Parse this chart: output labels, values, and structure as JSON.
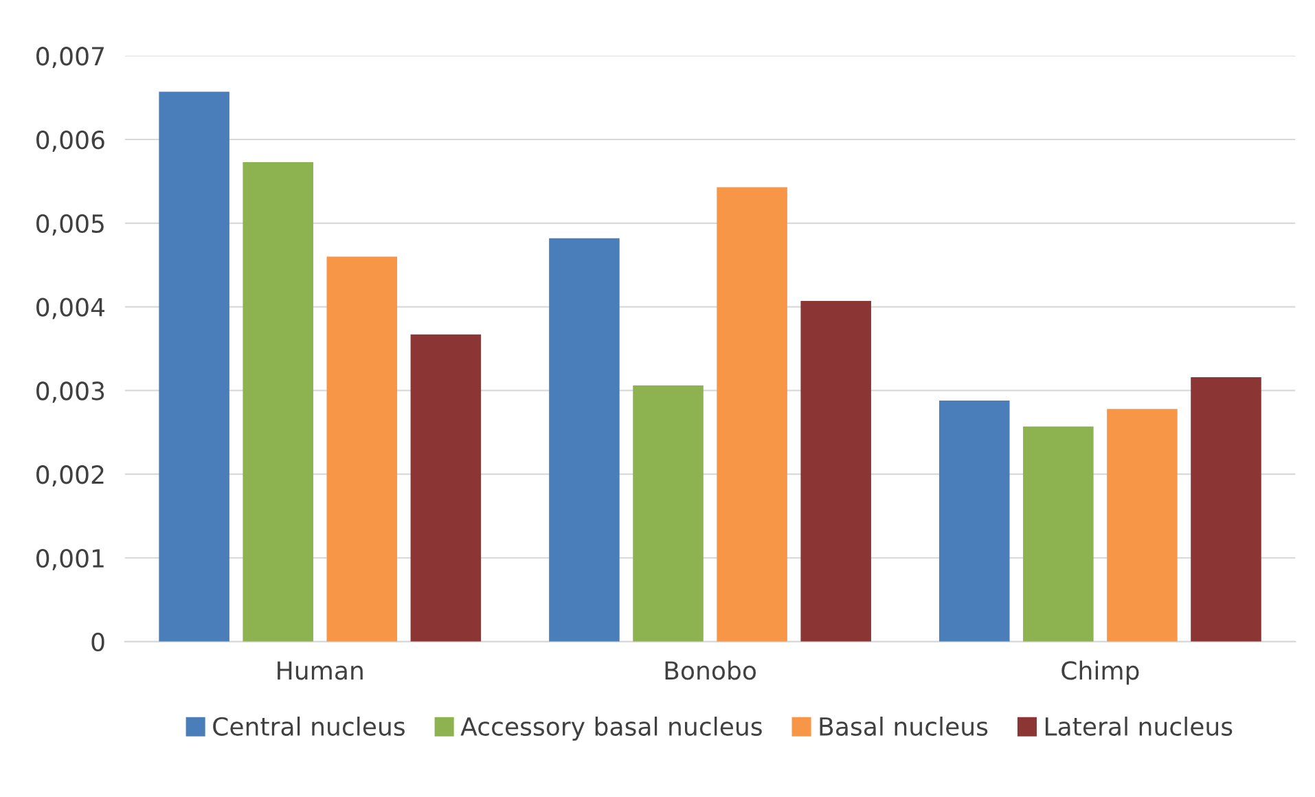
{
  "chart_data": {
    "type": "bar",
    "categories": [
      "Human",
      "Bonobo",
      "Chimp"
    ],
    "series": [
      {
        "name": "Central nucleus",
        "color": "#4a7ebb",
        "values": [
          0.00657,
          0.00482,
          0.00288
        ]
      },
      {
        "name": "Accessory basal nucleus",
        "color": "#8db350",
        "values": [
          0.00573,
          0.00306,
          0.00257
        ]
      },
      {
        "name": "Basal nucleus",
        "color": "#f79646",
        "values": [
          0.0046,
          0.00543,
          0.00278
        ]
      },
      {
        "name": "Lateral nucleus",
        "color": "#8b3535",
        "values": [
          0.00367,
          0.00407,
          0.00316
        ]
      }
    ],
    "ylim": [
      0,
      0.007
    ],
    "yticks": [
      0,
      {
        "value": 0.001,
        "label": "0,001"
      },
      {
        "value": 0.002,
        "label": "0,002"
      },
      {
        "value": 0.003,
        "label": "0,003"
      },
      {
        "value": 0.004,
        "label": "0,004"
      },
      {
        "value": 0.005,
        "label": "0,005"
      },
      {
        "value": 0.006,
        "label": "0,006"
      },
      {
        "value": 0.007,
        "label": "0,007"
      }
    ],
    "grid": "y",
    "legend": "bottom"
  }
}
